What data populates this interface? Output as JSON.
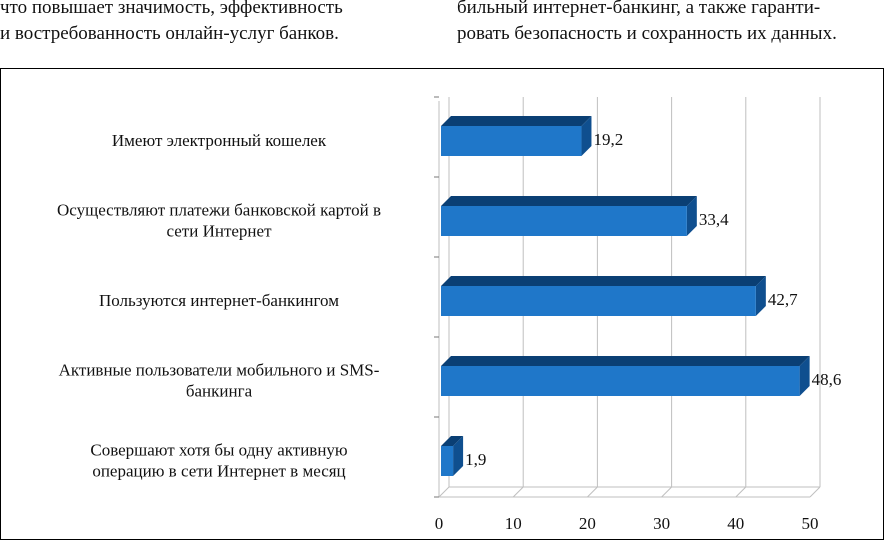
{
  "text": {
    "left_lines": [
      "что повышает значимость, эффективность",
      "и востребованность онлайн-услуг банков."
    ],
    "right_lines": [
      "бильный интернет-банкинг, а также гаранти-",
      "ровать безопасность и сохранность их данных."
    ]
  },
  "chart_data": {
    "type": "bar",
    "orientation": "horizontal",
    "style": "3d",
    "categories": [
      "Имеют электронный кошелек",
      "Осуществляют платежи банковской картой в сети Интернет",
      "Пользуются интернет-банкингом",
      "Активные пользователи мобильного и SMS-банкинга",
      "Совершают хотя бы одну активную операцию в сети Интернет в месяц"
    ],
    "category_label_lines": [
      [
        "Имеют электронный кошелек"
      ],
      [
        "Осуществляют платежи банковской картой в",
        "сети Интернет"
      ],
      [
        "Пользуются интернет-банкингом"
      ],
      [
        "Активные пользователи мобильного и SMS-",
        "банкинга"
      ],
      [
        "Совершают хотя бы одну активную",
        "операцию в сети Интернет в месяц"
      ]
    ],
    "values": [
      19.2,
      33.4,
      42.7,
      48.6,
      1.9
    ],
    "value_labels": [
      "19,2",
      "33,4",
      "42,7",
      "48,6",
      "1,9"
    ],
    "x_ticks": [
      "0",
      "10",
      "20",
      "30",
      "40",
      "50"
    ],
    "xlim": [
      0,
      50
    ],
    "grid": true,
    "bar_color": "#1f77c9",
    "bar_side_color": "#0f4f8f",
    "bar_top_color": "#0a3f74",
    "gridline_color": "#bfbfbf"
  }
}
